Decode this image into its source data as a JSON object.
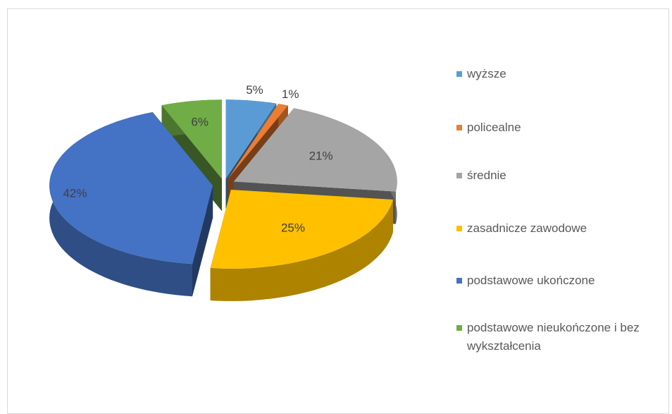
{
  "chart_data": {
    "type": "pie",
    "categories": [
      "wyższe",
      "policealne",
      "średnie",
      "zasadnicze zawodowe",
      "podstawowe ukończone",
      "podstawowe nieukończone i bez wykształcenia"
    ],
    "values": [
      5,
      1,
      21,
      25,
      42,
      6
    ],
    "value_labels": [
      "5%",
      "1%",
      "21%",
      "25%",
      "42%",
      "6%"
    ],
    "colors": [
      "#5b9bd5",
      "#ed7d31",
      "#a5a5a5",
      "#ffc000",
      "#4472c4",
      "#70ad47"
    ],
    "legend": "right"
  }
}
